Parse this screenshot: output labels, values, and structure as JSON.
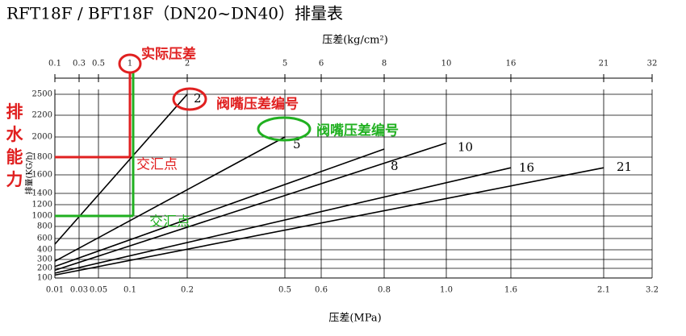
{
  "chart_data": {
    "type": "line",
    "title": "RFT18F / BFT18F（DN20~DN40）排量表",
    "x2label": "压差(kg/cm²)",
    "xlabel": "压差(MPa)",
    "ylabel": "排量(KG/h)",
    "side_label": "排水能力",
    "xticks": [
      0.01,
      0.03,
      0.05,
      0.1,
      0.2,
      0.5,
      0.6,
      0.8,
      {
        "value": 1,
        "label": "1.0"
      },
      1.6,
      2.1,
      3.2
    ],
    "x2ticks": [
      0.1,
      0.3,
      0.5,
      1,
      2,
      5,
      6,
      8,
      10,
      16,
      21,
      32
    ],
    "xlim": [
      0.01,
      3.2
    ],
    "yticks": [
      100,
      200,
      300,
      400,
      600,
      800,
      1000,
      1200,
      1400,
      1600,
      1800,
      2000,
      2200,
      2500
    ],
    "ylim": [
      100,
      2500
    ],
    "grid": true,
    "series": [
      {
        "name": "2",
        "color": "#000000",
        "x": [
          0.01,
          0.2
        ],
        "values": [
          500,
          2500
        ]
      },
      {
        "name": "5",
        "color": "#000000",
        "x": [
          0.01,
          0.5
        ],
        "values": [
          280,
          2000
        ]
      },
      {
        "name": "8",
        "color": "#000000",
        "x": [
          0.01,
          0.8
        ],
        "values": [
          220,
          1880
        ]
      },
      {
        "name": "10",
        "color": "#000000",
        "x": [
          0.01,
          1
        ],
        "values": [
          180,
          1940
        ]
      },
      {
        "name": "16",
        "color": "#000000",
        "x": [
          0.01,
          1.6
        ],
        "values": [
          150,
          1680
        ]
      },
      {
        "name": "21",
        "color": "#000000",
        "x": [
          0.01,
          2.1
        ],
        "values": [
          130,
          1680
        ]
      }
    ],
    "readings": [
      {
        "x": 0.1,
        "y": 1800,
        "color": "#e02020",
        "label": "交汇点"
      },
      {
        "x": 0.1,
        "y": 1000,
        "color": "#20b020",
        "label": "交汇点"
      }
    ],
    "annotations": [
      {
        "text": "实际压差",
        "color": "#e02020"
      },
      {
        "text": "阀嘴压差编号",
        "color": "#e02020"
      },
      {
        "text": "阀嘴压差编号",
        "color": "#20b020"
      }
    ]
  }
}
